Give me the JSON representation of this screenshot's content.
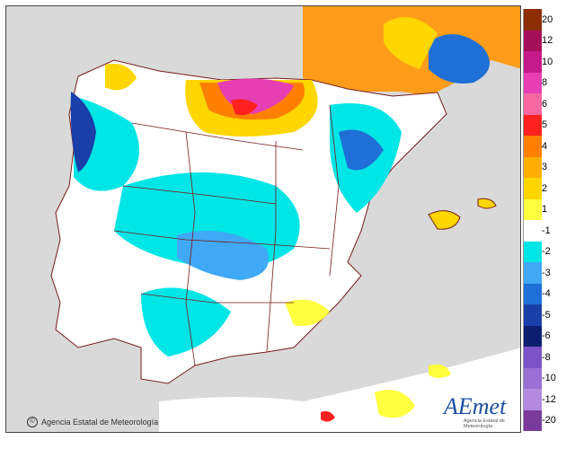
{
  "legend": {
    "items": [
      {
        "label": "20",
        "color": "#8c2d04"
      },
      {
        "label": "12",
        "color": "#a50f5a"
      },
      {
        "label": "10",
        "color": "#c51b8a"
      },
      {
        "label": "8",
        "color": "#e63fb4"
      },
      {
        "label": "6",
        "color": "#f768a1"
      },
      {
        "label": "5",
        "color": "#ff2020"
      },
      {
        "label": "4",
        "color": "#ff7f00"
      },
      {
        "label": "3",
        "color": "#ffae00"
      },
      {
        "label": "2",
        "color": "#ffd600"
      },
      {
        "label": "1",
        "color": "#ffff40"
      },
      {
        "label": "-1",
        "color": "#ffffff"
      },
      {
        "label": "-2",
        "color": "#00e5e5"
      },
      {
        "label": "-3",
        "color": "#3fa9f5"
      },
      {
        "label": "-4",
        "color": "#1f6fd6"
      },
      {
        "label": "-5",
        "color": "#1a3fa8"
      },
      {
        "label": "-6",
        "color": "#0d1f70"
      },
      {
        "label": "-8",
        "color": "#7b52c8"
      },
      {
        "label": "-10",
        "color": "#9a6fd6"
      },
      {
        "label": "-12",
        "color": "#b48ae0"
      },
      {
        "label": "-20",
        "color": "#7a3c9a"
      }
    ]
  },
  "credit": {
    "text": "Agencia Estatal de Meteorología"
  },
  "logo": {
    "brand": "AEmet",
    "sub": "Agencia Estatal de Meteorología"
  },
  "colors": {
    "sea": "#d9d9d9",
    "land": "#ffffff",
    "border": "#7a1a1a"
  }
}
